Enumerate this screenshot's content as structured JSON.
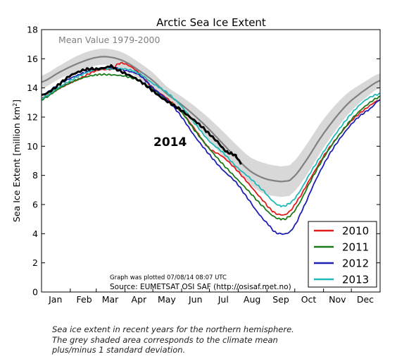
{
  "chart_data": {
    "type": "line",
    "title": "Arctic Sea Ice Extent",
    "ylabel_main": "Sea Ice Extent [million km",
    "ylabel_sup": "2",
    "ylabel_end": "]",
    "xlabel": "",
    "ylim": [
      0,
      18
    ],
    "xlim": [
      0,
      365
    ],
    "yticks": [
      0,
      2,
      4,
      6,
      8,
      10,
      12,
      14,
      16,
      18
    ],
    "months": [
      {
        "label": "Jan",
        "day": 15
      },
      {
        "label": "Feb",
        "day": 46
      },
      {
        "label": "Mar",
        "day": 74
      },
      {
        "label": "Apr",
        "day": 105
      },
      {
        "label": "May",
        "day": 135
      },
      {
        "label": "Jun",
        "day": 166
      },
      {
        "label": "Jul",
        "day": 196
      },
      {
        "label": "Aug",
        "day": 227
      },
      {
        "label": "Sep",
        "day": 258
      },
      {
        "label": "Oct",
        "day": 288
      },
      {
        "label": "Nov",
        "day": 319
      },
      {
        "label": "Dec",
        "day": 349
      }
    ],
    "mean_label": "Mean Value 1979-2000",
    "annotation_2014": "2014",
    "plot_note": "Graph was plotted 07/08/14 08:07 UTC",
    "source": "Source: EUMETSAT OSI SAF (http://osisaf.met.no)",
    "mean": {
      "name": "Mean Value 1979-2000",
      "color": "#808080",
      "x": [
        0,
        20,
        40,
        60,
        75,
        90,
        105,
        120,
        135,
        150,
        165,
        180,
        195,
        210,
        225,
        240,
        255,
        262,
        270,
        285,
        300,
        315,
        330,
        345,
        365
      ],
      "values": [
        14.4,
        15.1,
        15.7,
        16.1,
        16.1,
        15.8,
        15.2,
        14.5,
        13.6,
        12.9,
        12.1,
        11.2,
        10.2,
        9.2,
        8.3,
        7.8,
        7.6,
        7.6,
        7.8,
        9.0,
        10.5,
        11.8,
        12.9,
        13.7,
        14.5
      ],
      "std": [
        0.45,
        0.45,
        0.55,
        0.55,
        0.55,
        0.55,
        0.55,
        0.55,
        0.5,
        0.55,
        0.65,
        0.75,
        0.85,
        0.9,
        0.95,
        1.05,
        1.05,
        1.05,
        1.05,
        1.05,
        1.0,
        0.9,
        0.75,
        0.6,
        0.5
      ]
    },
    "series": [
      {
        "name": "2010",
        "color": "#e31a1c",
        "x": [
          0,
          20,
          40,
          60,
          75,
          85,
          95,
          105,
          120,
          135,
          150,
          165,
          180,
          195,
          210,
          225,
          240,
          250,
          258,
          265,
          275,
          290,
          305,
          320,
          335,
          350,
          365
        ],
        "values": [
          13.3,
          14.0,
          14.6,
          15.2,
          15.3,
          15.7,
          15.5,
          15.0,
          14.0,
          13.3,
          12.4,
          11.2,
          9.9,
          9.3,
          8.4,
          7.3,
          6.2,
          5.5,
          5.3,
          5.4,
          6.2,
          7.8,
          9.4,
          10.7,
          11.8,
          12.6,
          13.2
        ]
      },
      {
        "name": "2011",
        "color": "#1a7a1a",
        "x": [
          0,
          20,
          40,
          60,
          75,
          90,
          105,
          120,
          135,
          150,
          165,
          180,
          195,
          210,
          225,
          240,
          250,
          258,
          265,
          275,
          290,
          305,
          320,
          335,
          350,
          365
        ],
        "values": [
          13.2,
          14.0,
          14.6,
          14.9,
          14.9,
          14.8,
          14.5,
          13.9,
          13.2,
          12.4,
          11.1,
          9.9,
          8.8,
          7.8,
          6.8,
          5.8,
          5.2,
          5.0,
          5.1,
          5.8,
          7.6,
          9.3,
          10.7,
          11.9,
          12.8,
          13.4
        ]
      },
      {
        "name": "2012",
        "color": "#1f1fb4",
        "x": [
          0,
          20,
          40,
          60,
          75,
          90,
          105,
          120,
          135,
          150,
          165,
          180,
          195,
          210,
          225,
          235,
          245,
          252,
          258,
          263,
          270,
          280,
          295,
          310,
          325,
          340,
          355,
          365
        ],
        "values": [
          13.5,
          14.3,
          14.9,
          15.3,
          15.4,
          15.2,
          14.9,
          14.0,
          13.2,
          12.1,
          10.7,
          9.5,
          8.4,
          7.5,
          6.2,
          5.3,
          4.6,
          4.1,
          4.0,
          4.0,
          4.3,
          5.5,
          7.6,
          9.4,
          10.8,
          11.9,
          12.6,
          13.2
        ]
      },
      {
        "name": "2013",
        "color": "#21b8b8",
        "x": [
          0,
          20,
          40,
          60,
          75,
          90,
          105,
          120,
          135,
          150,
          165,
          180,
          195,
          210,
          225,
          240,
          250,
          258,
          265,
          275,
          290,
          305,
          320,
          335,
          350,
          365
        ],
        "values": [
          13.3,
          14.1,
          14.8,
          15.3,
          15.3,
          15.3,
          15.0,
          14.3,
          13.7,
          12.8,
          11.6,
          10.4,
          9.6,
          8.6,
          7.8,
          6.9,
          6.2,
          5.9,
          6.0,
          6.6,
          8.2,
          9.7,
          11.1,
          12.3,
          13.2,
          13.6
        ]
      },
      {
        "name": "2014",
        "color": "#000000",
        "x": [
          0,
          10,
          20,
          30,
          40,
          50,
          60,
          70,
          75,
          80,
          90,
          100,
          110,
          120,
          130,
          140,
          150,
          160,
          170,
          180,
          190,
          195,
          200,
          205,
          210,
          215
        ],
        "values": [
          13.5,
          13.8,
          14.3,
          14.8,
          15.1,
          15.3,
          15.3,
          15.4,
          15.5,
          15.3,
          15.0,
          14.7,
          14.3,
          13.8,
          13.3,
          12.9,
          12.5,
          12.0,
          11.5,
          10.9,
          10.3,
          9.9,
          9.6,
          9.5,
          9.3,
          8.8
        ]
      }
    ],
    "legend_position": "lower-right"
  },
  "caption": {
    "line1": "Sea ice extent in recent years for the northern hemisphere.",
    "line2": "The grey shaded area corresponds to the climate mean",
    "line3": "plus/minus 1 standard deviation."
  }
}
